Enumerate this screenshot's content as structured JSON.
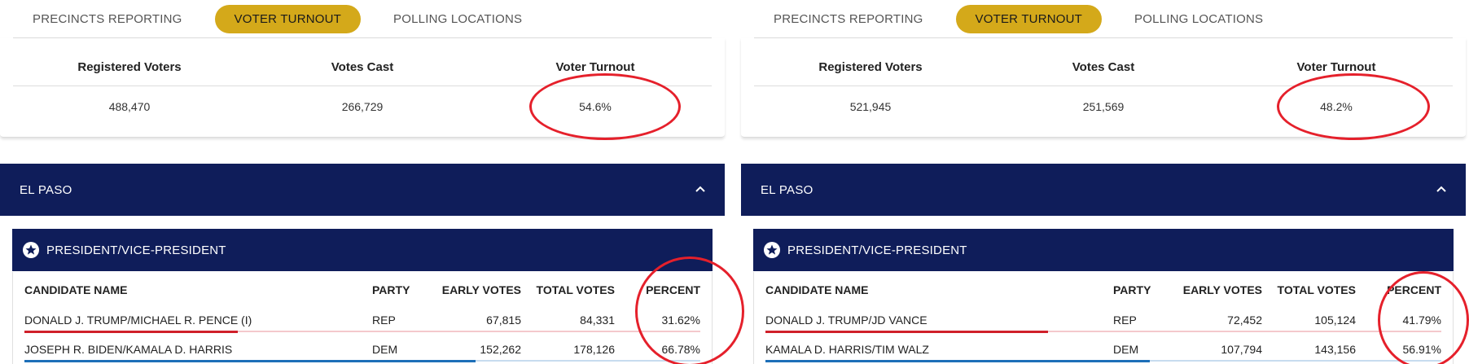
{
  "tabs": [
    "PRECINCTS REPORTING",
    "VOTER TURNOUT",
    "POLLING LOCATIONS"
  ],
  "active_tab": "VOTER TURNOUT",
  "turnout_headers": [
    "Registered Voters",
    "Votes Cast",
    "Voter Turnout"
  ],
  "results_headers": [
    "CANDIDATE NAME",
    "PARTY",
    "EARLY VOTES",
    "TOTAL VOTES",
    "PERCENT"
  ],
  "colors": {
    "navy": "#0f1d5a",
    "gold": "#d4a91a",
    "rep": "#d0202a",
    "dem": "#1d6fb8",
    "annotation": "#e5202b"
  },
  "panels": {
    "left": {
      "registered": "488,470",
      "votes_cast": "266,729",
      "turnout": "54.6%",
      "county": "EL PASO",
      "race": "PRESIDENT/VICE-PRESIDENT",
      "rows": [
        {
          "name": "DONALD J. TRUMP/MICHAEL R. PENCE (I)",
          "party": "REP",
          "early": "67,815",
          "total": "84,331",
          "percent": "31.62%",
          "share": 0.3162
        },
        {
          "name": "JOSEPH R. BIDEN/KAMALA D. HARRIS",
          "party": "DEM",
          "early": "152,262",
          "total": "178,126",
          "percent": "66.78%",
          "share": 0.6678
        }
      ]
    },
    "right": {
      "registered": "521,945",
      "votes_cast": "251,569",
      "turnout": "48.2%",
      "county": "EL PASO",
      "race": "PRESIDENT/VICE-PRESIDENT",
      "rows": [
        {
          "name": "DONALD J. TRUMP/JD VANCE",
          "party": "REP",
          "early": "72,452",
          "total": "105,124",
          "percent": "41.79%",
          "share": 0.4179
        },
        {
          "name": "KAMALA D. HARRIS/TIM WALZ",
          "party": "DEM",
          "early": "107,794",
          "total": "143,156",
          "percent": "56.91%",
          "share": 0.5691
        }
      ]
    }
  }
}
